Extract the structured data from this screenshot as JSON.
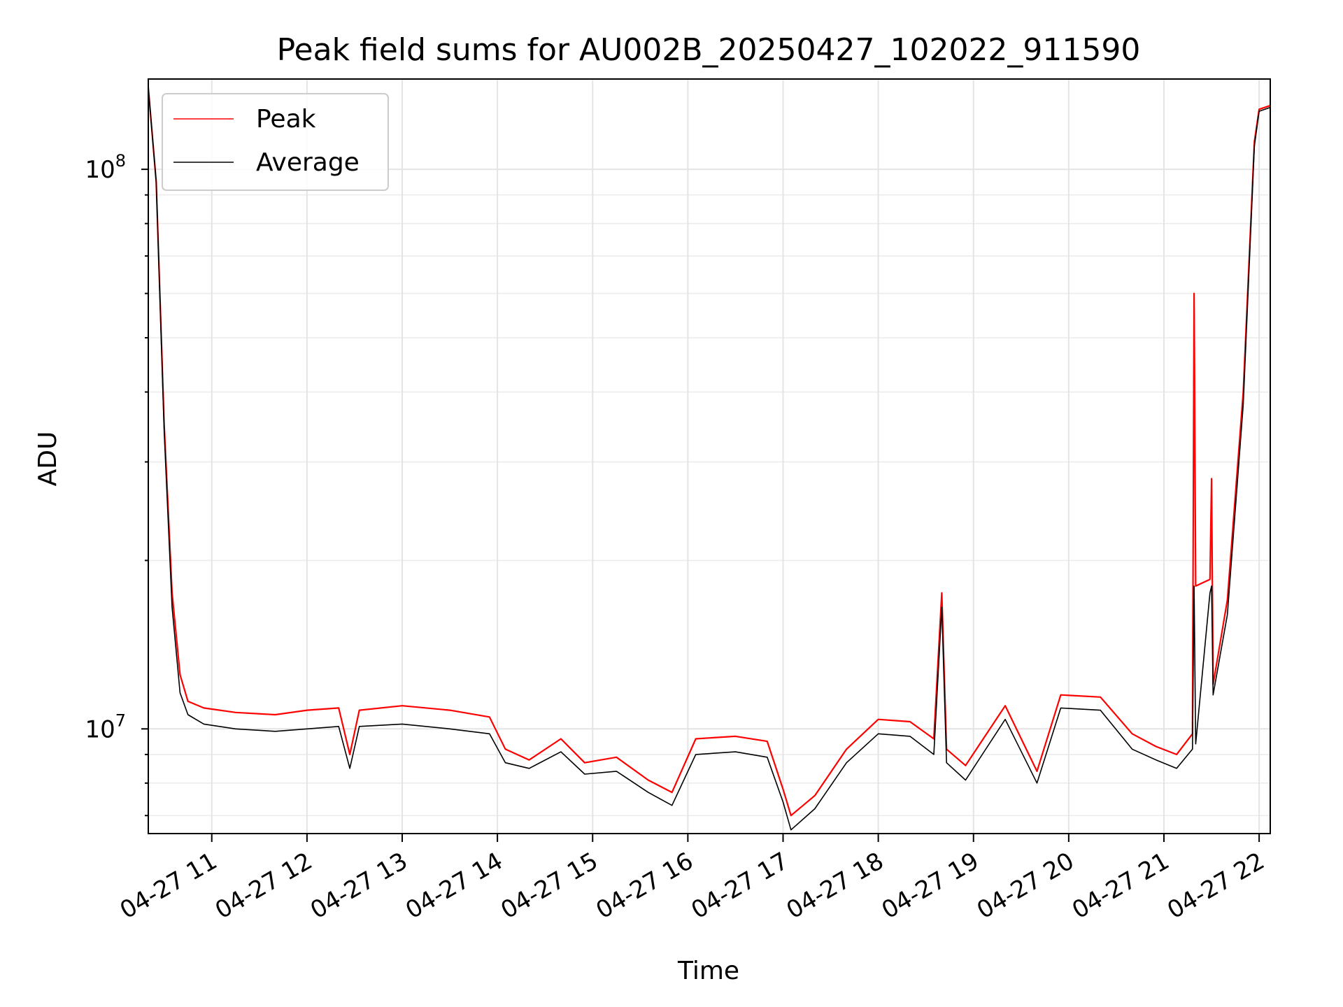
{
  "chart_data": {
    "type": "line",
    "title": "Peak field sums for AU002B_20250427_102022_911590",
    "xlabel": "Time",
    "ylabel": "ADU",
    "yscale": "log",
    "xlim": [
      "2025-04-27 10:20",
      "2025-04-27 22:07"
    ],
    "ylim": [
      6500000,
      145000000
    ],
    "grid": true,
    "grid_minor": true,
    "legend_position": "top-left",
    "x_ticks": [
      {
        "value": "2025-04-27 11:00",
        "label": "04-27 11"
      },
      {
        "value": "2025-04-27 12:00",
        "label": "04-27 12"
      },
      {
        "value": "2025-04-27 13:00",
        "label": "04-27 13"
      },
      {
        "value": "2025-04-27 14:00",
        "label": "04-27 14"
      },
      {
        "value": "2025-04-27 15:00",
        "label": "04-27 15"
      },
      {
        "value": "2025-04-27 16:00",
        "label": "04-27 16"
      },
      {
        "value": "2025-04-27 17:00",
        "label": "04-27 17"
      },
      {
        "value": "2025-04-27 18:00",
        "label": "04-27 18"
      },
      {
        "value": "2025-04-27 19:00",
        "label": "04-27 19"
      },
      {
        "value": "2025-04-27 20:00",
        "label": "04-27 20"
      },
      {
        "value": "2025-04-27 21:00",
        "label": "04-27 21"
      },
      {
        "value": "2025-04-27 22:00",
        "label": "04-27 22"
      }
    ],
    "y_ticks": [
      {
        "value": 10000000,
        "base": "10",
        "exp": "7"
      },
      {
        "value": 100000000,
        "base": "10",
        "exp": "8"
      }
    ],
    "series": [
      {
        "name": "Peak",
        "color": "#ff0000",
        "points": [
          [
            "2025-04-27 10:20",
            140000000
          ],
          [
            "2025-04-27 10:25",
            95000000
          ],
          [
            "2025-04-27 10:30",
            35000000
          ],
          [
            "2025-04-27 10:35",
            17500000
          ],
          [
            "2025-04-27 10:40",
            12500000
          ],
          [
            "2025-04-27 10:45",
            11200000
          ],
          [
            "2025-04-27 10:55",
            10900000
          ],
          [
            "2025-04-27 11:15",
            10700000
          ],
          [
            "2025-04-27 11:40",
            10600000
          ],
          [
            "2025-04-27 12:00",
            10800000
          ],
          [
            "2025-04-27 12:20",
            10900000
          ],
          [
            "2025-04-27 12:27",
            9000000
          ],
          [
            "2025-04-27 12:33",
            10800000
          ],
          [
            "2025-04-27 13:00",
            11000000
          ],
          [
            "2025-04-27 13:30",
            10800000
          ],
          [
            "2025-04-27 13:55",
            10500000
          ],
          [
            "2025-04-27 14:05",
            9200000
          ],
          [
            "2025-04-27 14:20",
            8800000
          ],
          [
            "2025-04-27 14:40",
            9600000
          ],
          [
            "2025-04-27 14:55",
            8700000
          ],
          [
            "2025-04-27 15:15",
            8900000
          ],
          [
            "2025-04-27 15:35",
            8100000
          ],
          [
            "2025-04-27 15:50",
            7700000
          ],
          [
            "2025-04-27 16:05",
            9600000
          ],
          [
            "2025-04-27 16:30",
            9700000
          ],
          [
            "2025-04-27 16:50",
            9500000
          ],
          [
            "2025-04-27 17:00",
            7800000
          ],
          [
            "2025-04-27 17:05",
            7000000
          ],
          [
            "2025-04-27 17:20",
            7600000
          ],
          [
            "2025-04-27 17:40",
            9200000
          ],
          [
            "2025-04-27 18:00",
            10400000
          ],
          [
            "2025-04-27 18:20",
            10300000
          ],
          [
            "2025-04-27 18:35",
            9600000
          ],
          [
            "2025-04-27 18:40",
            17500000
          ],
          [
            "2025-04-27 18:43",
            9200000
          ],
          [
            "2025-04-27 18:55",
            8600000
          ],
          [
            "2025-04-27 19:20",
            11000000
          ],
          [
            "2025-04-27 19:40",
            8400000
          ],
          [
            "2025-04-27 19:55",
            11500000
          ],
          [
            "2025-04-27 20:20",
            11400000
          ],
          [
            "2025-04-27 20:40",
            9800000
          ],
          [
            "2025-04-27 20:55",
            9300000
          ],
          [
            "2025-04-27 21:08",
            9000000
          ],
          [
            "2025-04-27 21:18",
            9800000
          ],
          [
            "2025-04-27 21:19",
            60000000
          ],
          [
            "2025-04-27 21:20",
            18000000
          ],
          [
            "2025-04-27 21:29",
            18500000
          ],
          [
            "2025-04-27 21:30",
            28000000
          ],
          [
            "2025-04-27 21:31",
            12000000
          ],
          [
            "2025-04-27 21:40",
            17000000
          ],
          [
            "2025-04-27 21:50",
            40000000
          ],
          [
            "2025-04-27 21:57",
            112000000
          ],
          [
            "2025-04-27 22:00",
            128000000
          ],
          [
            "2025-04-27 22:07",
            130000000
          ]
        ]
      },
      {
        "name": "Average",
        "color": "#000000",
        "points": [
          [
            "2025-04-27 10:20",
            140000000
          ],
          [
            "2025-04-27 10:25",
            95000000
          ],
          [
            "2025-04-27 10:30",
            34000000
          ],
          [
            "2025-04-27 10:35",
            16500000
          ],
          [
            "2025-04-27 10:40",
            11600000
          ],
          [
            "2025-04-27 10:45",
            10600000
          ],
          [
            "2025-04-27 10:55",
            10200000
          ],
          [
            "2025-04-27 11:15",
            10000000
          ],
          [
            "2025-04-27 11:40",
            9900000
          ],
          [
            "2025-04-27 12:00",
            10000000
          ],
          [
            "2025-04-27 12:20",
            10100000
          ],
          [
            "2025-04-27 12:27",
            8500000
          ],
          [
            "2025-04-27 12:33",
            10100000
          ],
          [
            "2025-04-27 13:00",
            10200000
          ],
          [
            "2025-04-27 13:30",
            10000000
          ],
          [
            "2025-04-27 13:55",
            9800000
          ],
          [
            "2025-04-27 14:05",
            8700000
          ],
          [
            "2025-04-27 14:20",
            8500000
          ],
          [
            "2025-04-27 14:40",
            9100000
          ],
          [
            "2025-04-27 14:55",
            8300000
          ],
          [
            "2025-04-27 15:15",
            8400000
          ],
          [
            "2025-04-27 15:35",
            7700000
          ],
          [
            "2025-04-27 15:50",
            7300000
          ],
          [
            "2025-04-27 16:05",
            9000000
          ],
          [
            "2025-04-27 16:30",
            9100000
          ],
          [
            "2025-04-27 16:50",
            8900000
          ],
          [
            "2025-04-27 17:00",
            7400000
          ],
          [
            "2025-04-27 17:05",
            6600000
          ],
          [
            "2025-04-27 17:20",
            7200000
          ],
          [
            "2025-04-27 17:40",
            8700000
          ],
          [
            "2025-04-27 18:00",
            9800000
          ],
          [
            "2025-04-27 18:20",
            9700000
          ],
          [
            "2025-04-27 18:35",
            9000000
          ],
          [
            "2025-04-27 18:40",
            16500000
          ],
          [
            "2025-04-27 18:43",
            8700000
          ],
          [
            "2025-04-27 18:55",
            8100000
          ],
          [
            "2025-04-27 19:20",
            10400000
          ],
          [
            "2025-04-27 19:40",
            8000000
          ],
          [
            "2025-04-27 19:55",
            10900000
          ],
          [
            "2025-04-27 20:20",
            10800000
          ],
          [
            "2025-04-27 20:40",
            9200000
          ],
          [
            "2025-04-27 20:55",
            8800000
          ],
          [
            "2025-04-27 21:08",
            8500000
          ],
          [
            "2025-04-27 21:18",
            9200000
          ],
          [
            "2025-04-27 21:19",
            18000000
          ],
          [
            "2025-04-27 21:20",
            9400000
          ],
          [
            "2025-04-27 21:29",
            17500000
          ],
          [
            "2025-04-27 21:30",
            18000000
          ],
          [
            "2025-04-27 21:31",
            11500000
          ],
          [
            "2025-04-27 21:40",
            16000000
          ],
          [
            "2025-04-27 21:50",
            38000000
          ],
          [
            "2025-04-27 21:57",
            110000000
          ],
          [
            "2025-04-27 22:00",
            127000000
          ],
          [
            "2025-04-27 22:07",
            129000000
          ]
        ]
      }
    ]
  }
}
